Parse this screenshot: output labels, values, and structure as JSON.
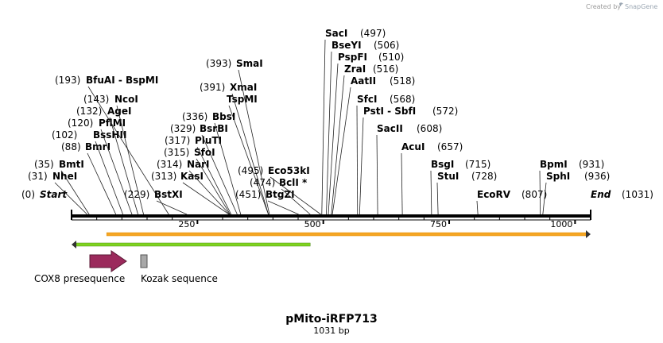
{
  "credit": {
    "prefix": "Created by",
    "brand": "SnapGene"
  },
  "plasmid": {
    "name": "pMito-iRFP713",
    "size_label": "1031 bp",
    "length": 1031
  },
  "ruler": {
    "ticks": [
      {
        "pos": 250,
        "label": "250"
      },
      {
        "pos": 500,
        "label": "500"
      },
      {
        "pos": 750,
        "label": "750"
      },
      {
        "pos": 1000,
        "label": "1000"
      }
    ]
  },
  "sites": [
    {
      "id": "start",
      "name": "Start",
      "pos": 0,
      "pos_label": "(0)",
      "italic": true,
      "lineTo": 0
    },
    {
      "id": "nhei",
      "name": "NheI",
      "pos": 31,
      "pos_label": "(31)",
      "lineTo": 31
    },
    {
      "id": "bmti",
      "name": "BmtI",
      "pos": 35,
      "pos_label": "(35)",
      "lineTo": 35
    },
    {
      "id": "bmri",
      "name": "BmrI",
      "pos": 88,
      "pos_label": "(88)",
      "lineTo": 88
    },
    {
      "id": "bsshii",
      "name": "BssHII",
      "pos": 102,
      "pos_label": "(102)",
      "lineTo": 102
    },
    {
      "id": "pflmi",
      "name": "PflMI",
      "pos": 120,
      "pos_label": "(120)",
      "lineTo": 120
    },
    {
      "id": "agei",
      "name": "AgeI",
      "pos": 132,
      "pos_label": "(132)",
      "lineTo": 132
    },
    {
      "id": "ncoi",
      "name": "NcoI",
      "pos": 143,
      "pos_label": "(143)",
      "lineTo": 143
    },
    {
      "id": "bfuai",
      "name": "BfuAI  - BspMI",
      "pos": 193,
      "pos_label": "(193)",
      "lineTo": 193
    },
    {
      "id": "bstxi",
      "name": "BstXI",
      "pos": 229,
      "pos_label": "(229)",
      "lineTo": 229
    },
    {
      "id": "kasi",
      "name": "KasI",
      "pos": 313,
      "pos_label": "(313)",
      "lineTo": 313
    },
    {
      "id": "nari",
      "name": "NarI",
      "pos": 314,
      "pos_label": "(314)",
      "lineTo": 314
    },
    {
      "id": "sfoi",
      "name": "SfoI",
      "pos": 315,
      "pos_label": "(315)",
      "lineTo": 315
    },
    {
      "id": "pluti",
      "name": "PluTI",
      "pos": 317,
      "pos_label": "(317)",
      "lineTo": 317
    },
    {
      "id": "bsrbi",
      "name": "BsrBI",
      "pos": 329,
      "pos_label": "(329)",
      "lineTo": 329
    },
    {
      "id": "bbsi",
      "name": "BbsI",
      "pos": 336,
      "pos_label": "(336)",
      "lineTo": 336
    },
    {
      "id": "tspmi",
      "name": "TspMI",
      "pos": 391,
      "pos_label": "",
      "lineTo": 391
    },
    {
      "id": "xmai",
      "name": "XmaI",
      "pos": 391,
      "pos_label": "(391)",
      "lineTo": 391
    },
    {
      "id": "smai",
      "name": "SmaI",
      "pos": 393,
      "pos_label": "(393)",
      "lineTo": 393
    },
    {
      "id": "btgzi",
      "name": "BtgZI",
      "pos": 451,
      "pos_label": "(451)",
      "lineTo": 451
    },
    {
      "id": "bcli",
      "name": "BclI *",
      "pos": 474,
      "pos_label": "(474)",
      "lineTo": 474
    },
    {
      "id": "eco53ki",
      "name": "Eco53kI",
      "pos": 495,
      "pos_label": "(495)",
      "lineTo": 495
    },
    {
      "id": "saci",
      "name": "SacI",
      "pos": 497,
      "pos_label": "(497)",
      "lineTo": 497
    },
    {
      "id": "bseyi",
      "name": "BseYI",
      "pos": 506,
      "pos_label": "(506)",
      "lineTo": 506
    },
    {
      "id": "pspfi",
      "name": "PspFI",
      "pos": 510,
      "pos_label": "(510)",
      "lineTo": 510
    },
    {
      "id": "zrai",
      "name": "ZraI",
      "pos": 516,
      "pos_label": "(516)",
      "lineTo": 516
    },
    {
      "id": "aatii",
      "name": "AatII",
      "pos": 518,
      "pos_label": "(518)",
      "lineTo": 518
    },
    {
      "id": "sfci",
      "name": "SfcI",
      "pos": 568,
      "pos_label": "(568)",
      "lineTo": 568
    },
    {
      "id": "psti",
      "name": "PstI  - SbfI",
      "pos": 572,
      "pos_label": "(572)",
      "lineTo": 572
    },
    {
      "id": "sacii",
      "name": "SacII",
      "pos": 608,
      "pos_label": "(608)",
      "lineTo": 608
    },
    {
      "id": "acui",
      "name": "AcuI",
      "pos": 657,
      "pos_label": "(657)",
      "lineTo": 657
    },
    {
      "id": "bsgi",
      "name": "BsgI",
      "pos": 715,
      "pos_label": "(715)",
      "lineTo": 715
    },
    {
      "id": "stui",
      "name": "StuI",
      "pos": 728,
      "pos_label": "(728)",
      "lineTo": 728
    },
    {
      "id": "ecorv",
      "name": "EcoRV",
      "pos": 807,
      "pos_label": "(807)",
      "lineTo": 807
    },
    {
      "id": "bpmi",
      "name": "BpmI",
      "pos": 931,
      "pos_label": "(931)",
      "lineTo": 931
    },
    {
      "id": "sphi",
      "name": "SphI",
      "pos": 936,
      "pos_label": "(936)",
      "lineTo": 936
    },
    {
      "id": "end",
      "name": "End",
      "pos": 1031,
      "pos_label": "(1031)",
      "italic": true,
      "lineTo": 1031
    }
  ],
  "features": [
    {
      "id": "orf-forward",
      "direction": "forward",
      "start": 35,
      "end": 1031,
      "color": "#f5a623",
      "edge": "#e08a00"
    },
    {
      "id": "orf-reverse",
      "direction": "reverse",
      "start": 0,
      "end": 474,
      "color": "#7ed321",
      "edge": "#4e8f10"
    }
  ],
  "legend": [
    {
      "id": "cox8",
      "label": "COX8 presequence",
      "color": "#9b2a5c",
      "shape": "arrow"
    },
    {
      "id": "kozak",
      "label": "Kozak sequence",
      "color": "#a8a8a8",
      "shape": "box"
    }
  ]
}
